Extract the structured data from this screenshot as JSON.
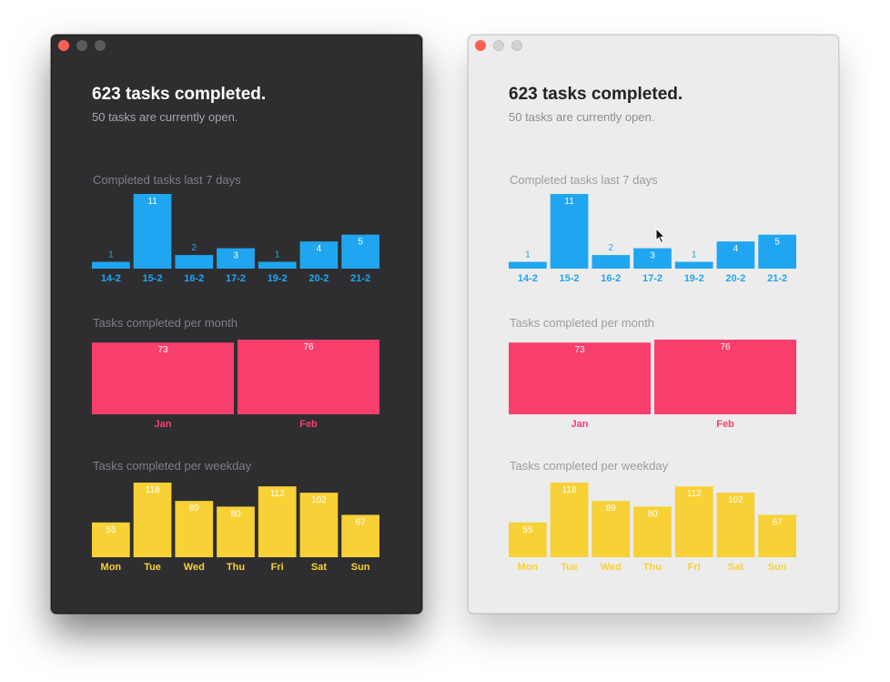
{
  "colors": {
    "close_dot": "#fc5f57",
    "weekly": "#20a6f0",
    "monthly": "#f83e6d",
    "weekday": "#f7d135",
    "value_label": "#ffffff"
  },
  "windows": [
    {
      "theme": "dark",
      "stats": {
        "completed": "623 tasks completed.",
        "open": "50 tasks are currently open."
      },
      "sections": {
        "last7": "Completed tasks last 7 days",
        "month": "Tasks completed per month",
        "weekday": "Tasks completed per weekday"
      }
    },
    {
      "theme": "light",
      "stats": {
        "completed": "623 tasks completed.",
        "open": "50 tasks are currently open."
      },
      "sections": {
        "last7": "Completed tasks last 7 days",
        "month": "Tasks completed per month",
        "weekday": "Tasks completed per weekday"
      }
    }
  ],
  "chart_data": [
    {
      "type": "bar",
      "title": "Completed tasks last 7 days",
      "categories": [
        "14-2",
        "15-2",
        "16-2",
        "17-2",
        "19-2",
        "20-2",
        "21-2"
      ],
      "values": [
        1,
        11,
        2,
        3,
        1,
        4,
        5
      ],
      "ylim": [
        0,
        11
      ],
      "color": "#20a6f0"
    },
    {
      "type": "bar",
      "title": "Tasks completed per month",
      "categories": [
        "Jan",
        "Feb"
      ],
      "values": [
        73,
        76
      ],
      "ylim": [
        0,
        76
      ],
      "color": "#f83e6d"
    },
    {
      "type": "bar",
      "title": "Tasks completed per weekday",
      "categories": [
        "Mon",
        "Tue",
        "Wed",
        "Thu",
        "Fri",
        "Sat",
        "Sun"
      ],
      "values": [
        55,
        118,
        89,
        80,
        112,
        102,
        67
      ],
      "ylim": [
        0,
        118
      ],
      "color": "#f7d135"
    }
  ]
}
